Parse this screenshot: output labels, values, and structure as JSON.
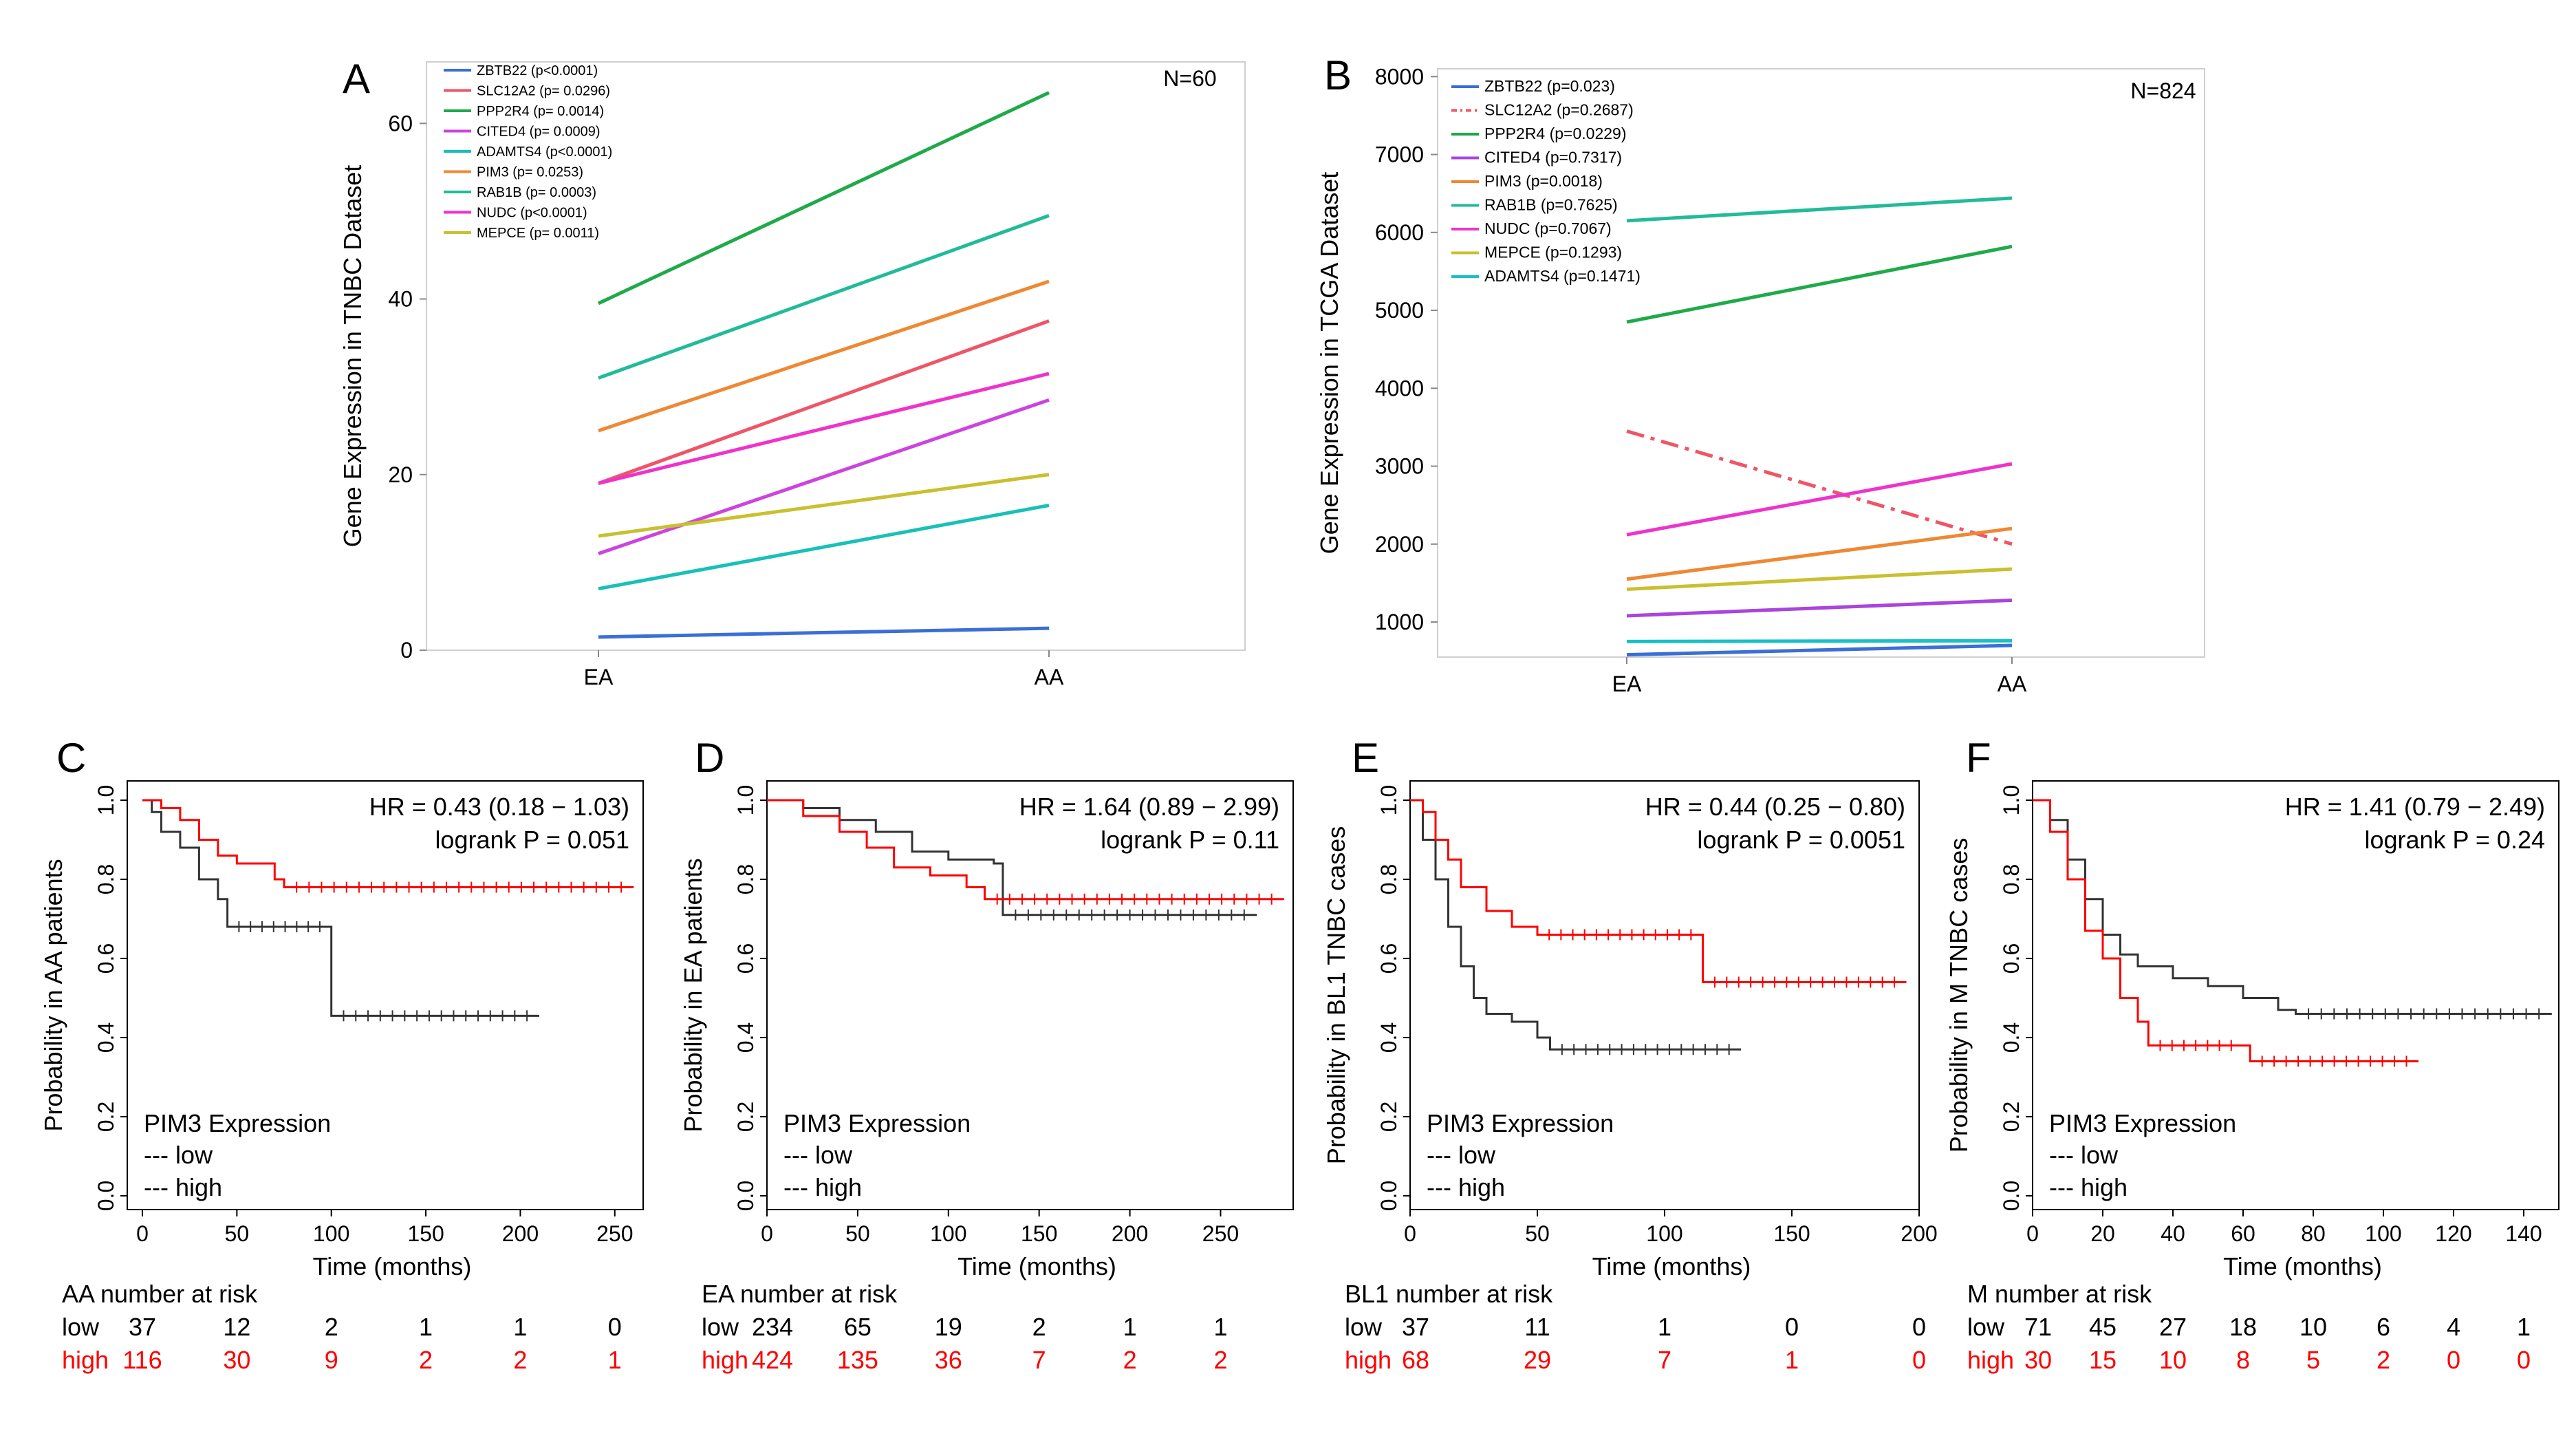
{
  "chart_data": [
    {
      "panel": "A",
      "type": "line",
      "ylabel": "Gene Expression in TNBC Dataset",
      "categories": [
        "EA",
        "AA"
      ],
      "yticks": [
        0,
        20,
        40,
        60
      ],
      "ylim": [
        0,
        67
      ],
      "annotation": "N=60",
      "series": [
        {
          "name": "ZBTB22 (p<0.0001)",
          "color": "#3a6fd8",
          "values": [
            1.5,
            2.5
          ]
        },
        {
          "name": "SLC12A2 (p= 0.0296)",
          "color": "#ee5566",
          "values": [
            19,
            37.5
          ]
        },
        {
          "name": "PPP2R4 (p= 0.0014)",
          "color": "#1faa4a",
          "values": [
            39.5,
            63.5
          ]
        },
        {
          "name": "CITED4 (p= 0.0009)",
          "color": "#cc44dd",
          "values": [
            11,
            28.5
          ]
        },
        {
          "name": "ADAMTS4 (p<0.0001)",
          "color": "#18c0b8",
          "values": [
            7,
            16.5
          ]
        },
        {
          "name": "PIM3 (p= 0.0253)",
          "color": "#ee8833",
          "values": [
            25,
            42
          ]
        },
        {
          "name": "RAB1B (p= 0.0003)",
          "color": "#22bb99",
          "values": [
            31,
            49.5
          ]
        },
        {
          "name": "NUDC (p<0.0001)",
          "color": "#ee33cc",
          "values": [
            19,
            31.5
          ]
        },
        {
          "name": "MEPCE (p= 0.0011)",
          "color": "#c8c030",
          "values": [
            13,
            20
          ]
        }
      ]
    },
    {
      "panel": "B",
      "type": "line",
      "ylabel": "Gene Expression in TCGA Dataset",
      "categories": [
        "EA",
        "AA"
      ],
      "yticks": [
        1000,
        2000,
        3000,
        4000,
        5000,
        6000,
        7000,
        8000
      ],
      "ylim": [
        550,
        8100
      ],
      "annotation": "N=824",
      "series": [
        {
          "name": "ZBTB22 (p=0.023)",
          "color": "#3a6fd8",
          "dashed": false,
          "values": [
            580,
            700
          ]
        },
        {
          "name": "SLC12A2 (p=0.2687)",
          "color": "#ee5566",
          "dashed": true,
          "values": [
            3450,
            2000
          ]
        },
        {
          "name": "PPP2R4 (p=0.0229)",
          "color": "#1faa4a",
          "dashed": false,
          "values": [
            4850,
            5820
          ]
        },
        {
          "name": "CITED4 (p=0.7317)",
          "color": "#aa44dd",
          "dashed": false,
          "values": [
            1080,
            1280
          ]
        },
        {
          "name": "PIM3 (p=0.0018)",
          "color": "#ee8833",
          "dashed": false,
          "values": [
            1550,
            2200
          ]
        },
        {
          "name": "RAB1B (p=0.7625)",
          "color": "#22bb99",
          "dashed": false,
          "values": [
            6150,
            6440
          ]
        },
        {
          "name": "NUDC (p=0.7067)",
          "color": "#ee33cc",
          "dashed": false,
          "values": [
            2120,
            3030
          ]
        },
        {
          "name": "MEPCE (p=0.1293)",
          "color": "#c8c030",
          "dashed": false,
          "values": [
            1420,
            1680
          ]
        },
        {
          "name": "ADAMTS4 (p=0.1471)",
          "color": "#18c0c8",
          "dashed": false,
          "values": [
            750,
            760
          ]
        }
      ]
    },
    {
      "panel": "C",
      "type": "line",
      "subtype": "kaplan-meier",
      "ylabel": "Probability in AA patients",
      "xlabel": "Time (months)",
      "xticks": [
        0,
        50,
        100,
        150,
        200,
        250
      ],
      "xlim": [
        -8,
        265
      ],
      "yticks": [
        "0.0",
        "0.2",
        "0.4",
        "0.6",
        "0.8",
        "1.0"
      ],
      "hr_text": "HR = 0.43 (0.18 − 1.03)",
      "logrank_text": "logrank P = 0.051",
      "legend_title": "PIM3 Expression",
      "legend_low": "--- low",
      "legend_high": "--- high",
      "risk_title": "AA number at risk",
      "risk_low_label": "low",
      "risk_high_label": "high",
      "risk_low": [
        "37",
        "12",
        "2",
        "1",
        "1",
        "0"
      ],
      "risk_high": [
        "116",
        "30",
        "9",
        "2",
        "2",
        "1"
      ],
      "low_curve": [
        [
          0,
          1.0
        ],
        [
          5,
          0.97
        ],
        [
          10,
          0.92
        ],
        [
          20,
          0.88
        ],
        [
          30,
          0.8
        ],
        [
          40,
          0.75
        ],
        [
          45,
          0.68
        ],
        [
          100,
          0.68
        ],
        [
          100,
          0.455
        ],
        [
          210,
          0.455
        ]
      ],
      "high_curve": [
        [
          0,
          1.0
        ],
        [
          10,
          0.98
        ],
        [
          20,
          0.95
        ],
        [
          30,
          0.9
        ],
        [
          40,
          0.86
        ],
        [
          50,
          0.84
        ],
        [
          70,
          0.8
        ],
        [
          75,
          0.78
        ],
        [
          260,
          0.78
        ]
      ]
    },
    {
      "panel": "D",
      "type": "line",
      "subtype": "kaplan-meier",
      "ylabel": "Probability in EA patients",
      "xlabel": "Time (months)",
      "xticks": [
        0,
        50,
        100,
        150,
        200,
        250
      ],
      "xlim": [
        0,
        290
      ],
      "yticks": [
        "0.0",
        "0.2",
        "0.4",
        "0.6",
        "0.8",
        "1.0"
      ],
      "hr_text": "HR = 1.64 (0.89 − 2.99)",
      "logrank_text": "logrank P = 0.11",
      "legend_title": "PIM3 Expression",
      "legend_low": "--- low",
      "legend_high": "--- high",
      "risk_title": "EA number at risk",
      "risk_low_label": "low",
      "risk_high_label": "high",
      "risk_low": [
        "234",
        "65",
        "19",
        "2",
        "1",
        "1"
      ],
      "risk_high": [
        "424",
        "135",
        "36",
        "7",
        "2",
        "2"
      ],
      "low_curve": [
        [
          0,
          1.0
        ],
        [
          20,
          0.98
        ],
        [
          40,
          0.95
        ],
        [
          60,
          0.92
        ],
        [
          80,
          0.87
        ],
        [
          100,
          0.85
        ],
        [
          125,
          0.84
        ],
        [
          130,
          0.71
        ],
        [
          270,
          0.71
        ]
      ],
      "high_curve": [
        [
          0,
          1.0
        ],
        [
          20,
          0.96
        ],
        [
          40,
          0.92
        ],
        [
          55,
          0.88
        ],
        [
          70,
          0.83
        ],
        [
          90,
          0.81
        ],
        [
          110,
          0.78
        ],
        [
          120,
          0.75
        ],
        [
          285,
          0.75
        ]
      ]
    },
    {
      "panel": "E",
      "type": "line",
      "subtype": "kaplan-meier",
      "ylabel": "Probability in BL1 TNBC  cases",
      "xlabel": "Time (months)",
      "xticks": [
        0,
        50,
        100,
        150,
        200
      ],
      "xlim": [
        0,
        200
      ],
      "yticks": [
        "0.0",
        "0.2",
        "0.4",
        "0.6",
        "0.8",
        "1.0"
      ],
      "hr_text": "HR = 0.44 (0.25 − 0.80)",
      "logrank_text": "logrank P = 0.0051",
      "legend_title": "PIM3 Expression",
      "legend_low": "--- low",
      "legend_high": "--- high",
      "risk_title": "BL1 number at risk",
      "risk_low_label": "low",
      "risk_high_label": "high",
      "risk_low": [
        "37",
        "11",
        "1",
        "0",
        "0"
      ],
      "risk_high": [
        "68",
        "29",
        "7",
        "1",
        "0"
      ],
      "low_curve": [
        [
          0,
          1.0
        ],
        [
          5,
          0.9
        ],
        [
          10,
          0.8
        ],
        [
          15,
          0.68
        ],
        [
          20,
          0.58
        ],
        [
          25,
          0.5
        ],
        [
          30,
          0.46
        ],
        [
          40,
          0.44
        ],
        [
          50,
          0.4
        ],
        [
          55,
          0.37
        ],
        [
          130,
          0.37
        ]
      ],
      "high_curve": [
        [
          0,
          1.0
        ],
        [
          5,
          0.97
        ],
        [
          10,
          0.9
        ],
        [
          15,
          0.85
        ],
        [
          20,
          0.78
        ],
        [
          30,
          0.72
        ],
        [
          40,
          0.68
        ],
        [
          50,
          0.66
        ],
        [
          115,
          0.66
        ],
        [
          115,
          0.54
        ],
        [
          195,
          0.54
        ]
      ]
    },
    {
      "panel": "F",
      "type": "line",
      "subtype": "kaplan-meier",
      "ylabel": "Probability in M TNBC cases",
      "xlabel": "Time (months)",
      "xticks": [
        0,
        20,
        40,
        60,
        80,
        100,
        120,
        140
      ],
      "xlim": [
        0,
        150
      ],
      "yticks": [
        "0.0",
        "0.2",
        "0.4",
        "0.6",
        "0.8",
        "1.0"
      ],
      "hr_text": "HR = 1.41 (0.79 − 2.49)",
      "logrank_text": "logrank P = 0.24",
      "legend_title": "PIM3 Expression",
      "legend_low": "--- low",
      "legend_high": "--- high",
      "risk_title": "M number at risk",
      "risk_low_label": "low",
      "risk_high_label": "high",
      "risk_low": [
        "71",
        "45",
        "27",
        "18",
        "10",
        "6",
        "4",
        "1"
      ],
      "risk_high": [
        "30",
        "15",
        "10",
        "8",
        "5",
        "2",
        "0",
        "0"
      ],
      "low_curve": [
        [
          0,
          1.0
        ],
        [
          5,
          0.95
        ],
        [
          10,
          0.85
        ],
        [
          15,
          0.75
        ],
        [
          20,
          0.66
        ],
        [
          25,
          0.61
        ],
        [
          30,
          0.58
        ],
        [
          40,
          0.55
        ],
        [
          50,
          0.53
        ],
        [
          60,
          0.5
        ],
        [
          70,
          0.47
        ],
        [
          75,
          0.46
        ],
        [
          148,
          0.46
        ]
      ],
      "high_curve": [
        [
          0,
          1.0
        ],
        [
          5,
          0.92
        ],
        [
          10,
          0.8
        ],
        [
          15,
          0.67
        ],
        [
          20,
          0.6
        ],
        [
          25,
          0.5
        ],
        [
          30,
          0.44
        ],
        [
          33,
          0.38
        ],
        [
          60,
          0.38
        ],
        [
          62,
          0.34
        ],
        [
          110,
          0.34
        ]
      ]
    }
  ]
}
